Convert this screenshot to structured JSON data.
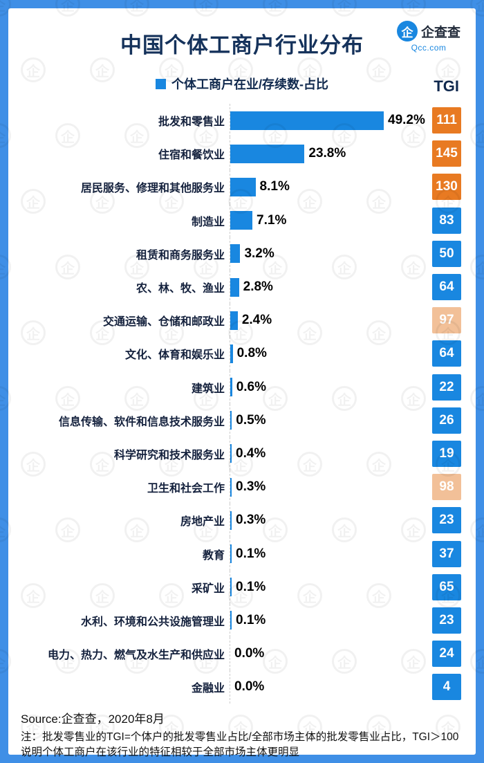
{
  "frame": {
    "bg": "#3F8FE6",
    "card_bg": "#FFFFFF"
  },
  "header": {
    "title": "中国个体工商户行业分布",
    "logo": {
      "icon_glyph": "企",
      "name": "企查查",
      "domain": "Qcc.com"
    }
  },
  "legend": {
    "label": "个体工商户在业/存续数-占比",
    "swatch_color": "#1987E0"
  },
  "tgi_header": "TGI",
  "chart_data": {
    "type": "bar",
    "orientation": "horizontal",
    "title": "中国个体工商户行业分布",
    "series_name": "个体工商户在业/存续数-占比",
    "categories": [
      "批发和零售业",
      "住宿和餐饮业",
      "居民服务、修理和其他服务业",
      "制造业",
      "租赁和商务服务业",
      "农、林、牧、渔业",
      "交通运输、仓储和邮政业",
      "文化、体育和娱乐业",
      "建筑业",
      "信息传输、软件和信息技术服务业",
      "科学研究和技术服务业",
      "卫生和社会工作",
      "房地产业",
      "教育",
      "采矿业",
      "水利、环境和公共设施管理业",
      "电力、热力、燃气及水生产和供应业",
      "金融业"
    ],
    "values": [
      49.2,
      23.8,
      8.1,
      7.1,
      3.2,
      2.8,
      2.4,
      0.8,
      0.6,
      0.5,
      0.4,
      0.3,
      0.3,
      0.1,
      0.1,
      0.1,
      0.0,
      0.0
    ],
    "value_labels": [
      "49.2%",
      "23.8%",
      "8.1%",
      "7.1%",
      "3.2%",
      "2.8%",
      "2.4%",
      "0.8%",
      "0.6%",
      "0.5%",
      "0.4%",
      "0.3%",
      "0.3%",
      "0.1%",
      "0.1%",
      "0.1%",
      "0.0%",
      "0.0%"
    ],
    "tgi_values": [
      111,
      145,
      130,
      83,
      50,
      64,
      97,
      64,
      22,
      26,
      19,
      98,
      23,
      37,
      65,
      23,
      24,
      4
    ],
    "tgi_colors": [
      "orange",
      "orange",
      "orange",
      "blue",
      "blue",
      "blue",
      "peach",
      "blue",
      "blue",
      "blue",
      "blue",
      "peach",
      "blue",
      "blue",
      "blue",
      "blue",
      "blue",
      "blue"
    ],
    "bar_color": "#1987E0",
    "tgi_palette": {
      "blue": "#1987E0",
      "orange": "#E87A22",
      "peach": "#F2C098"
    },
    "xlim": [
      0,
      49.2
    ],
    "grid": false,
    "legend_position": "top-center"
  },
  "footer": {
    "source": "Source:企查查，2020年8月",
    "note": "注：批发零售业的TGI=个体户的批发零售业占比/全部市场主体的批发零售业占比，TGI＞100说明个体工商户在该行业的特征相较于全部市场主体更明显"
  },
  "watermark": {
    "glyph": "企"
  }
}
